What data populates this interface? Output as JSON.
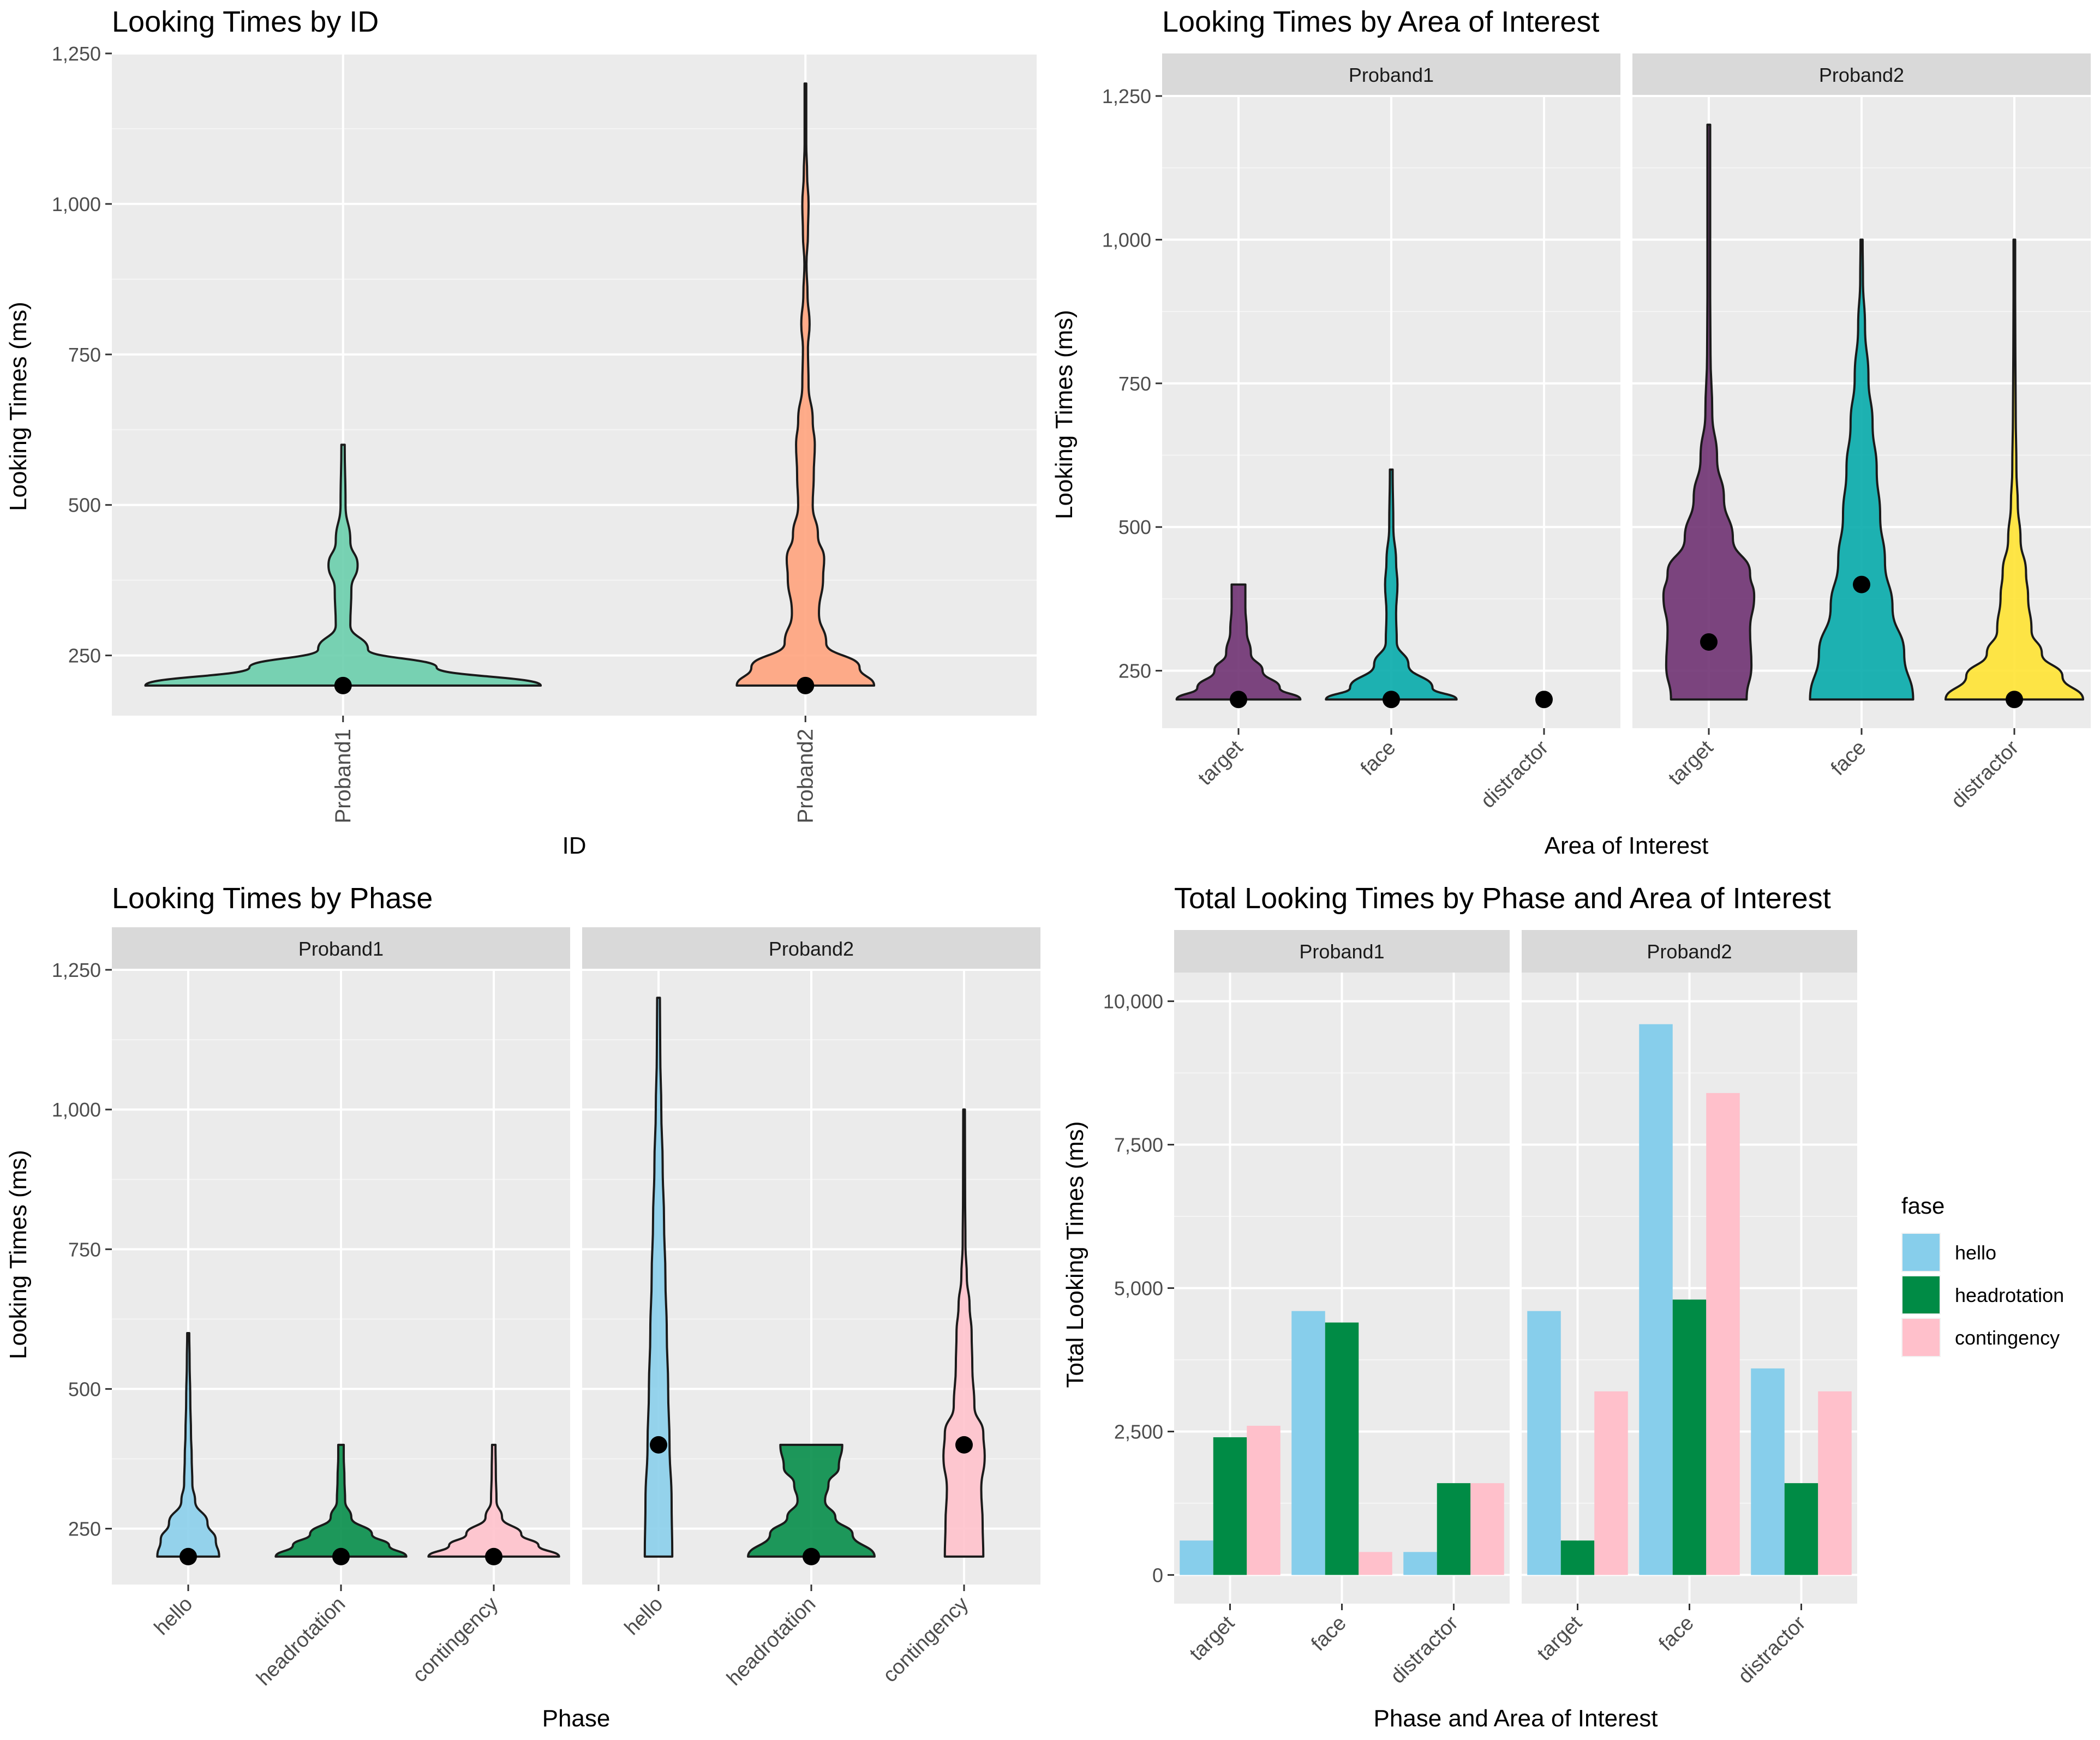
{
  "chart_data": [
    {
      "id": "p1",
      "type": "violin",
      "title": "Looking Times by ID",
      "xlabel": "ID",
      "ylabel": "Looking Times (ms)",
      "ylim": [
        150,
        1250
      ],
      "yticks": [
        250,
        500,
        750,
        1000,
        1250
      ],
      "ytick_labels": [
        "250",
        "500",
        "750",
        "1,000",
        "1,250"
      ],
      "panels": [
        {
          "strip": "",
          "categories": [
            "Proband1",
            "Proband2"
          ],
          "violins": [
            {
              "category": "Proband1",
              "color": "#66CDAA",
              "median": 200,
              "min": 200,
              "max": 600,
              "profile": [
                [
                  200,
                  0.95
                ],
                [
                  230,
                  0.45
                ],
                [
                  260,
                  0.12
                ],
                [
                  300,
                  0.035
                ],
                [
                  360,
                  0.04
                ],
                [
                  400,
                  0.07
                ],
                [
                  440,
                  0.035
                ],
                [
                  500,
                  0.012
                ],
                [
                  600,
                  0.008
                ]
              ]
            },
            {
              "category": "Proband2",
              "color": "#FFA07A",
              "median": 200,
              "min": 200,
              "max": 1200,
              "profile": [
                [
                  200,
                  0.33
                ],
                [
                  230,
                  0.26
                ],
                [
                  270,
                  0.1
                ],
                [
                  320,
                  0.065
                ],
                [
                  380,
                  0.085
                ],
                [
                  410,
                  0.09
                ],
                [
                  450,
                  0.06
                ],
                [
                  500,
                  0.035
                ],
                [
                  550,
                  0.04
                ],
                [
                  600,
                  0.045
                ],
                [
                  640,
                  0.035
                ],
                [
                  700,
                  0.015
                ],
                [
                  760,
                  0.012
                ],
                [
                  800,
                  0.02
                ],
                [
                  850,
                  0.01
                ],
                [
                  900,
                  0.005
                ],
                [
                  950,
                  0.012
                ],
                [
                  1000,
                  0.015
                ],
                [
                  1050,
                  0.008
                ],
                [
                  1100,
                  0.004
                ],
                [
                  1200,
                  0.004
                ]
              ]
            }
          ]
        }
      ]
    },
    {
      "id": "p2",
      "type": "violin",
      "title": "Looking Times by Area of Interest",
      "xlabel": "Area of Interest",
      "ylabel": "Looking Times (ms)",
      "ylim": [
        150,
        1250
      ],
      "yticks": [
        250,
        500,
        750,
        1000,
        1250
      ],
      "ytick_labels": [
        "250",
        "500",
        "750",
        "1,000",
        "1,250"
      ],
      "panels": [
        {
          "strip": "Proband1",
          "categories": [
            "target",
            "face",
            "distractor"
          ],
          "violins": [
            {
              "category": "target",
              "color": "#6B2C6E",
              "median": 200,
              "min": 200,
              "max": 400,
              "profile": [
                [
                  200,
                  0.9
                ],
                [
                  220,
                  0.6
                ],
                [
                  250,
                  0.35
                ],
                [
                  280,
                  0.18
                ],
                [
                  320,
                  0.12
                ],
                [
                  360,
                  0.1
                ],
                [
                  400,
                  0.1
                ]
              ]
            },
            {
              "category": "face",
              "color": "#00A8A8",
              "median": 200,
              "min": 200,
              "max": 600,
              "profile": [
                [
                  200,
                  0.95
                ],
                [
                  220,
                  0.6
                ],
                [
                  260,
                  0.25
                ],
                [
                  300,
                  0.08
                ],
                [
                  350,
                  0.07
                ],
                [
                  400,
                  0.09
                ],
                [
                  440,
                  0.07
                ],
                [
                  500,
                  0.03
                ],
                [
                  600,
                  0.02
                ]
              ]
            },
            {
              "category": "distractor",
              "color": "#FFE32E",
              "median": 200,
              "min": 200,
              "max": 200,
              "profile": [
                [
                  200,
                  0.08
                ]
              ]
            }
          ]
        },
        {
          "strip": "Proband2",
          "categories": [
            "target",
            "face",
            "distractor"
          ],
          "violins": [
            {
              "category": "target",
              "color": "#6B2C6E",
              "median": 300,
              "min": 200,
              "max": 1200,
              "profile": [
                [
                  200,
                  0.55
                ],
                [
                  260,
                  0.62
                ],
                [
                  320,
                  0.6
                ],
                [
                  380,
                  0.66
                ],
                [
                  420,
                  0.6
                ],
                [
                  480,
                  0.35
                ],
                [
                  550,
                  0.22
                ],
                [
                  620,
                  0.12
                ],
                [
                  700,
                  0.05
                ],
                [
                  800,
                  0.025
                ],
                [
                  900,
                  0.02
                ],
                [
                  1000,
                  0.02
                ],
                [
                  1100,
                  0.02
                ],
                [
                  1200,
                  0.02
                ]
              ]
            },
            {
              "category": "face",
              "color": "#00A8A8",
              "median": 400,
              "min": 200,
              "max": 1000,
              "profile": [
                [
                  200,
                  0.75
                ],
                [
                  280,
                  0.62
                ],
                [
                  360,
                  0.45
                ],
                [
                  440,
                  0.34
                ],
                [
                  520,
                  0.27
                ],
                [
                  600,
                  0.22
                ],
                [
                  680,
                  0.16
                ],
                [
                  760,
                  0.1
                ],
                [
                  850,
                  0.05
                ],
                [
                  930,
                  0.02
                ],
                [
                  1000,
                  0.015
                ]
              ]
            },
            {
              "category": "distractor",
              "color": "#FFE32E",
              "median": 200,
              "min": 200,
              "max": 1000,
              "profile": [
                [
                  200,
                  1.0
                ],
                [
                  240,
                  0.7
                ],
                [
                  280,
                  0.4
                ],
                [
                  320,
                  0.25
                ],
                [
                  380,
                  0.2
                ],
                [
                  420,
                  0.17
                ],
                [
                  480,
                  0.09
                ],
                [
                  540,
                  0.05
                ],
                [
                  600,
                  0.03
                ],
                [
                  700,
                  0.02
                ],
                [
                  800,
                  0.015
                ],
                [
                  900,
                  0.012
                ],
                [
                  1000,
                  0.012
                ]
              ]
            }
          ]
        }
      ]
    },
    {
      "id": "p3",
      "type": "violin",
      "title": "Looking Times by Phase",
      "xlabel": "Phase",
      "ylabel": "Looking Times (ms)",
      "ylim": [
        150,
        1250
      ],
      "yticks": [
        250,
        500,
        750,
        1000,
        1250
      ],
      "ytick_labels": [
        "250",
        "500",
        "750",
        "1,000",
        "1,250"
      ],
      "panels": [
        {
          "strip": "Proband1",
          "categories": [
            "hello",
            "headrotation",
            "contingency"
          ],
          "violins": [
            {
              "category": "hello",
              "color": "#87CEEB",
              "median": 200,
              "min": 200,
              "max": 600,
              "profile": [
                [
                  200,
                  0.45
                ],
                [
                  230,
                  0.4
                ],
                [
                  260,
                  0.28
                ],
                [
                  300,
                  0.1
                ],
                [
                  330,
                  0.06
                ],
                [
                  380,
                  0.05
                ],
                [
                  420,
                  0.04
                ],
                [
                  480,
                  0.03
                ],
                [
                  550,
                  0.02
                ],
                [
                  600,
                  0.015
                ]
              ]
            },
            {
              "category": "headrotation",
              "color": "#008B45",
              "median": 200,
              "min": 200,
              "max": 400,
              "profile": [
                [
                  200,
                  0.95
                ],
                [
                  220,
                  0.7
                ],
                [
                  240,
                  0.45
                ],
                [
                  270,
                  0.15
                ],
                [
                  300,
                  0.06
                ],
                [
                  340,
                  0.05
                ],
                [
                  380,
                  0.04
                ],
                [
                  400,
                  0.04
                ]
              ]
            },
            {
              "category": "contingency",
              "color": "#FFC0CB",
              "median": 200,
              "min": 200,
              "max": 400,
              "profile": [
                [
                  200,
                  0.95
                ],
                [
                  220,
                  0.65
                ],
                [
                  240,
                  0.4
                ],
                [
                  270,
                  0.12
                ],
                [
                  300,
                  0.04
                ],
                [
                  350,
                  0.03
                ],
                [
                  400,
                  0.025
                ]
              ]
            }
          ]
        },
        {
          "strip": "Proband2",
          "categories": [
            "hello",
            "headrotation",
            "contingency"
          ],
          "violins": [
            {
              "category": "hello",
              "color": "#87CEEB",
              "median": 400,
              "min": 200,
              "max": 1200,
              "profile": [
                [
                  200,
                  0.2
                ],
                [
                  300,
                  0.19
                ],
                [
                  400,
                  0.16
                ],
                [
                  500,
                  0.14
                ],
                [
                  600,
                  0.12
                ],
                [
                  700,
                  0.1
                ],
                [
                  800,
                  0.08
                ],
                [
                  900,
                  0.06
                ],
                [
                  1000,
                  0.04
                ],
                [
                  1100,
                  0.025
                ],
                [
                  1200,
                  0.02
                ]
              ]
            },
            {
              "category": "headrotation",
              "color": "#008B45",
              "median": 200,
              "min": 200,
              "max": 400,
              "profile": [
                [
                  200,
                  0.92
                ],
                [
                  240,
                  0.6
                ],
                [
                  270,
                  0.35
                ],
                [
                  300,
                  0.2
                ],
                [
                  330,
                  0.25
                ],
                [
                  360,
                  0.4
                ],
                [
                  400,
                  0.45
                ]
              ]
            },
            {
              "category": "contingency",
              "color": "#FFC0CB",
              "median": 400,
              "min": 200,
              "max": 1000,
              "profile": [
                [
                  200,
                  0.28
                ],
                [
                  260,
                  0.27
                ],
                [
                  320,
                  0.25
                ],
                [
                  380,
                  0.3
                ],
                [
                  420,
                  0.28
                ],
                [
                  470,
                  0.15
                ],
                [
                  540,
                  0.12
                ],
                [
                  600,
                  0.11
                ],
                [
                  650,
                  0.08
                ],
                [
                  700,
                  0.04
                ],
                [
                  760,
                  0.02
                ],
                [
                  850,
                  0.015
                ],
                [
                  1000,
                  0.012
                ]
              ]
            }
          ]
        }
      ]
    },
    {
      "id": "p4",
      "type": "bar",
      "title": "Total Looking Times by Phase and Area of Interest",
      "xlabel": "Phase and Area of Interest",
      "ylabel": "Total Looking Times (ms)",
      "ylim": [
        -500,
        10500
      ],
      "yticks": [
        0,
        2500,
        5000,
        7500,
        10000
      ],
      "ytick_labels": [
        "0",
        "2,500",
        "5,000",
        "7,500",
        "10,000"
      ],
      "legend": {
        "title": "fase",
        "position": "right",
        "entries": [
          "hello",
          "headrotation",
          "contingency"
        ]
      },
      "series_colors": {
        "hello": "#87CEEB",
        "headrotation": "#008B45",
        "contingency": "#FFC0CB"
      },
      "panels": [
        {
          "strip": "Proband1",
          "categories": [
            "target",
            "face",
            "distractor"
          ],
          "series": [
            {
              "name": "hello",
              "values": [
                600,
                4600,
                400
              ]
            },
            {
              "name": "headrotation",
              "values": [
                2400,
                4400,
                1600
              ]
            },
            {
              "name": "contingency",
              "values": [
                2600,
                400,
                1600
              ]
            }
          ]
        },
        {
          "strip": "Proband2",
          "categories": [
            "target",
            "face",
            "distractor"
          ],
          "series": [
            {
              "name": "hello",
              "values": [
                4600,
                9600,
                3600
              ]
            },
            {
              "name": "headrotation",
              "values": [
                600,
                4800,
                1600
              ]
            },
            {
              "name": "contingency",
              "values": [
                3200,
                8400,
                3200
              ]
            }
          ]
        }
      ]
    }
  ]
}
